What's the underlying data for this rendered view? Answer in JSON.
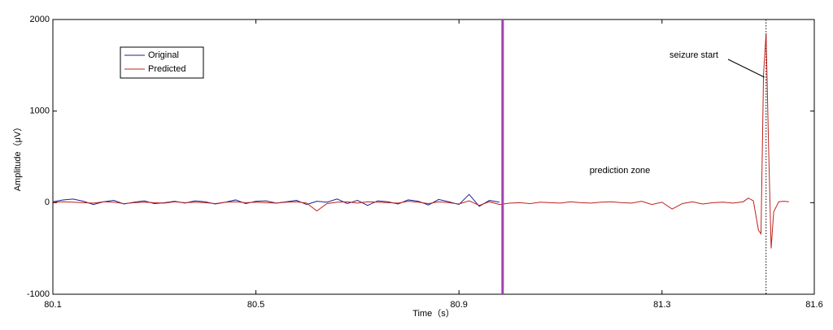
{
  "chart_data": {
    "type": "line",
    "xlabel": "Time（s）",
    "ylabel": "Amplitude（μV）",
    "xlim": [
      80.1,
      81.6
    ],
    "xticks": [
      80.1,
      80.5,
      80.9,
      81.3,
      81.6
    ],
    "ylim": [
      -1000,
      2000
    ],
    "yticks": [
      -1000,
      0,
      1000,
      2000
    ],
    "grid": false,
    "legend": "upper left",
    "x": [
      80.1,
      80.12,
      80.14,
      80.16,
      80.18,
      80.2,
      80.22,
      80.24,
      80.26,
      80.28,
      80.3,
      80.32,
      80.34,
      80.36,
      80.38,
      80.4,
      80.42,
      80.44,
      80.46,
      80.48,
      80.5,
      80.52,
      80.54,
      80.56,
      80.58,
      80.6,
      80.62,
      80.64,
      80.66,
      80.68,
      80.7,
      80.72,
      80.74,
      80.76,
      80.78,
      80.8,
      80.82,
      80.84,
      80.86,
      80.88,
      80.9,
      80.92,
      80.94,
      80.96,
      80.98,
      81.0,
      81.02,
      81.04,
      81.06,
      81.08,
      81.1,
      81.12,
      81.14,
      81.16,
      81.18,
      81.2,
      81.22,
      81.24,
      81.26,
      81.28,
      81.3,
      81.32,
      81.34,
      81.36,
      81.38,
      81.4,
      81.42,
      81.44,
      81.46,
      81.47,
      81.48,
      81.49,
      81.495,
      81.5,
      81.505,
      81.51,
      81.515,
      81.52,
      81.53,
      81.54,
      81.55
    ],
    "series": [
      {
        "name": "Original",
        "color": "#1f1f8f",
        "values": [
          10,
          30,
          40,
          15,
          -20,
          10,
          25,
          -15,
          5,
          20,
          -10,
          0,
          15,
          -5,
          20,
          10,
          -15,
          5,
          30,
          -10,
          15,
          20,
          -5,
          10,
          25,
          -20,
          15,
          5,
          40,
          -10,
          25,
          -30,
          20,
          10,
          -15,
          30,
          15,
          -25,
          35,
          10,
          -20,
          90,
          -40,
          25,
          5,
          null,
          null,
          null,
          null,
          null,
          null,
          null,
          null,
          null,
          null,
          null,
          null,
          null,
          null,
          null,
          null,
          null,
          null,
          null,
          null,
          null,
          null,
          null,
          null,
          null,
          null,
          null,
          null,
          null,
          null,
          null,
          null,
          null,
          null,
          null,
          null
        ]
      },
      {
        "name": "Predicted",
        "color": "#c0201c",
        "values": [
          5,
          10,
          5,
          0,
          -5,
          10,
          5,
          -10,
          0,
          5,
          0,
          -5,
          10,
          0,
          5,
          0,
          -10,
          5,
          10,
          0,
          5,
          0,
          -5,
          5,
          10,
          -5,
          -90,
          -10,
          5,
          10,
          -5,
          10,
          5,
          0,
          -5,
          15,
          5,
          -10,
          10,
          0,
          -15,
          20,
          -30,
          10,
          -20,
          -5,
          0,
          -10,
          5,
          0,
          -5,
          10,
          0,
          -5,
          5,
          10,
          0,
          -5,
          15,
          -20,
          5,
          -70,
          -10,
          10,
          -15,
          0,
          5,
          -5,
          10,
          50,
          20,
          -300,
          -340,
          1400,
          1850,
          600,
          -500,
          -100,
          10,
          15,
          10
        ]
      }
    ],
    "prediction_start": 80.986,
    "prediction_start_color": "#a040b0",
    "seizure_time": 81.505,
    "annotations": [
      "seizure start",
      "prediction zone"
    ]
  }
}
